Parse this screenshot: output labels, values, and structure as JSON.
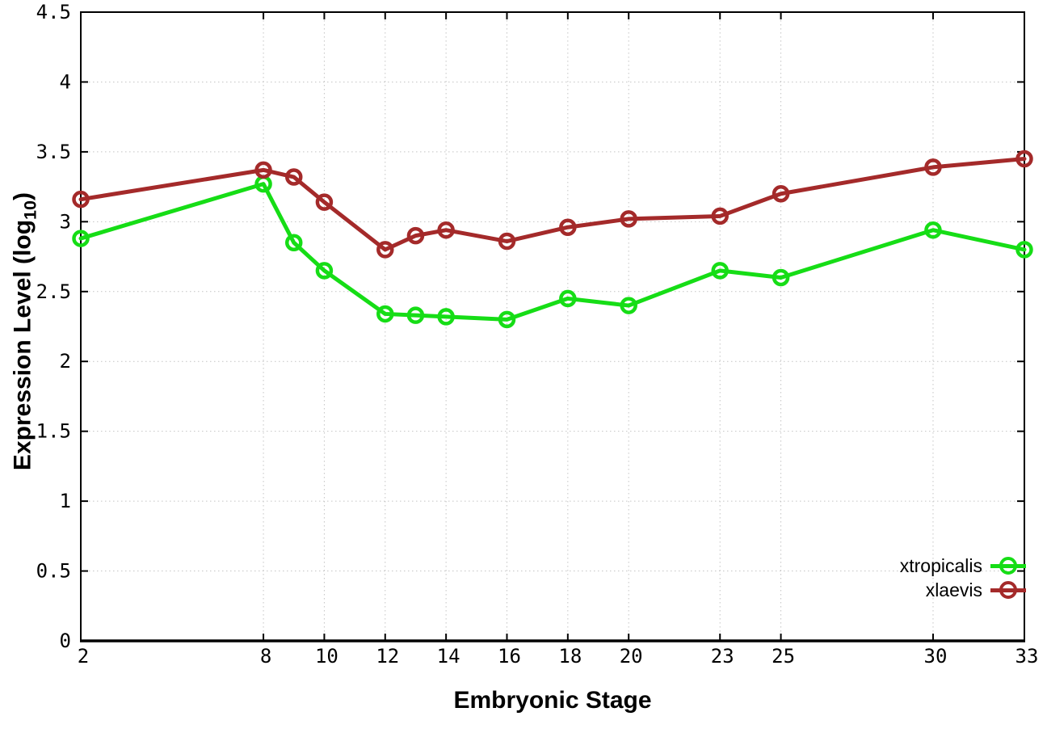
{
  "chart_data": {
    "type": "line",
    "title": "",
    "xlabel": "Embryonic Stage",
    "ylabel": "Expression Level (log10)",
    "ylabel_main": "Expression Level (log",
    "ylabel_sub": "10",
    "ylabel_suffix": ")",
    "x": [
      2,
      8,
      9,
      10,
      12,
      13,
      14,
      16,
      18,
      20,
      23,
      25,
      30,
      33
    ],
    "series": [
      {
        "name": "xtropicalis",
        "color": "#16dd16",
        "values": [
          2.88,
          3.27,
          2.85,
          2.65,
          2.34,
          2.33,
          2.32,
          2.3,
          2.45,
          2.4,
          2.65,
          2.6,
          2.94,
          2.8
        ]
      },
      {
        "name": "xlaevis",
        "color": "#a42a2a",
        "values": [
          3.16,
          3.37,
          3.32,
          3.14,
          2.8,
          2.9,
          2.94,
          2.86,
          2.96,
          3.02,
          3.04,
          3.2,
          3.39,
          3.45
        ]
      }
    ],
    "xlim": [
      2,
      33
    ],
    "ylim": [
      0,
      4.5
    ],
    "xticks": [
      2,
      8,
      10,
      12,
      14,
      16,
      18,
      20,
      23,
      25,
      30,
      33
    ],
    "yticks": [
      0,
      0.5,
      1,
      1.5,
      2,
      2.5,
      3,
      3.5,
      4,
      4.5
    ],
    "grid": true,
    "grid_color": "#c4c4c4",
    "axis_color": "#000000",
    "marker": "open-circle",
    "legend_position": "bottom-right"
  }
}
